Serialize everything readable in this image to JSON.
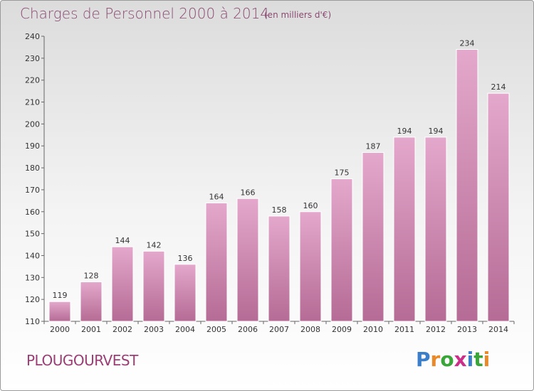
{
  "header": {
    "title": "Charges de Personnel 2000 à 2014",
    "subtitle": "(en milliers d'€)"
  },
  "footer": {
    "commune": "PLOUGOURVEST",
    "logo_letters": [
      "P",
      "r",
      "o",
      "x",
      "i",
      "t",
      "i"
    ]
  },
  "colors": {
    "bar_top": "#e4a8cc",
    "bar_bottom": "#b56b95",
    "title": "#8a4a72",
    "logo": [
      "#3b7ec9",
      "#e8892a",
      "#3aa63a",
      "#cc2f8a",
      "#3b7ec9",
      "#3aa63a",
      "#e8892a"
    ]
  },
  "chart_data": {
    "type": "bar",
    "categories": [
      "2000",
      "2001",
      "2002",
      "2003",
      "2004",
      "2005",
      "2006",
      "2007",
      "2008",
      "2009",
      "2010",
      "2011",
      "2012",
      "2013",
      "2014"
    ],
    "values": [
      119,
      128,
      144,
      142,
      136,
      164,
      166,
      158,
      160,
      175,
      187,
      194,
      194,
      234,
      214
    ],
    "ylim": [
      110,
      240
    ],
    "yticks": [
      110,
      120,
      130,
      140,
      150,
      160,
      170,
      180,
      190,
      200,
      210,
      220,
      230,
      240
    ],
    "grid": false,
    "legend": "none"
  }
}
